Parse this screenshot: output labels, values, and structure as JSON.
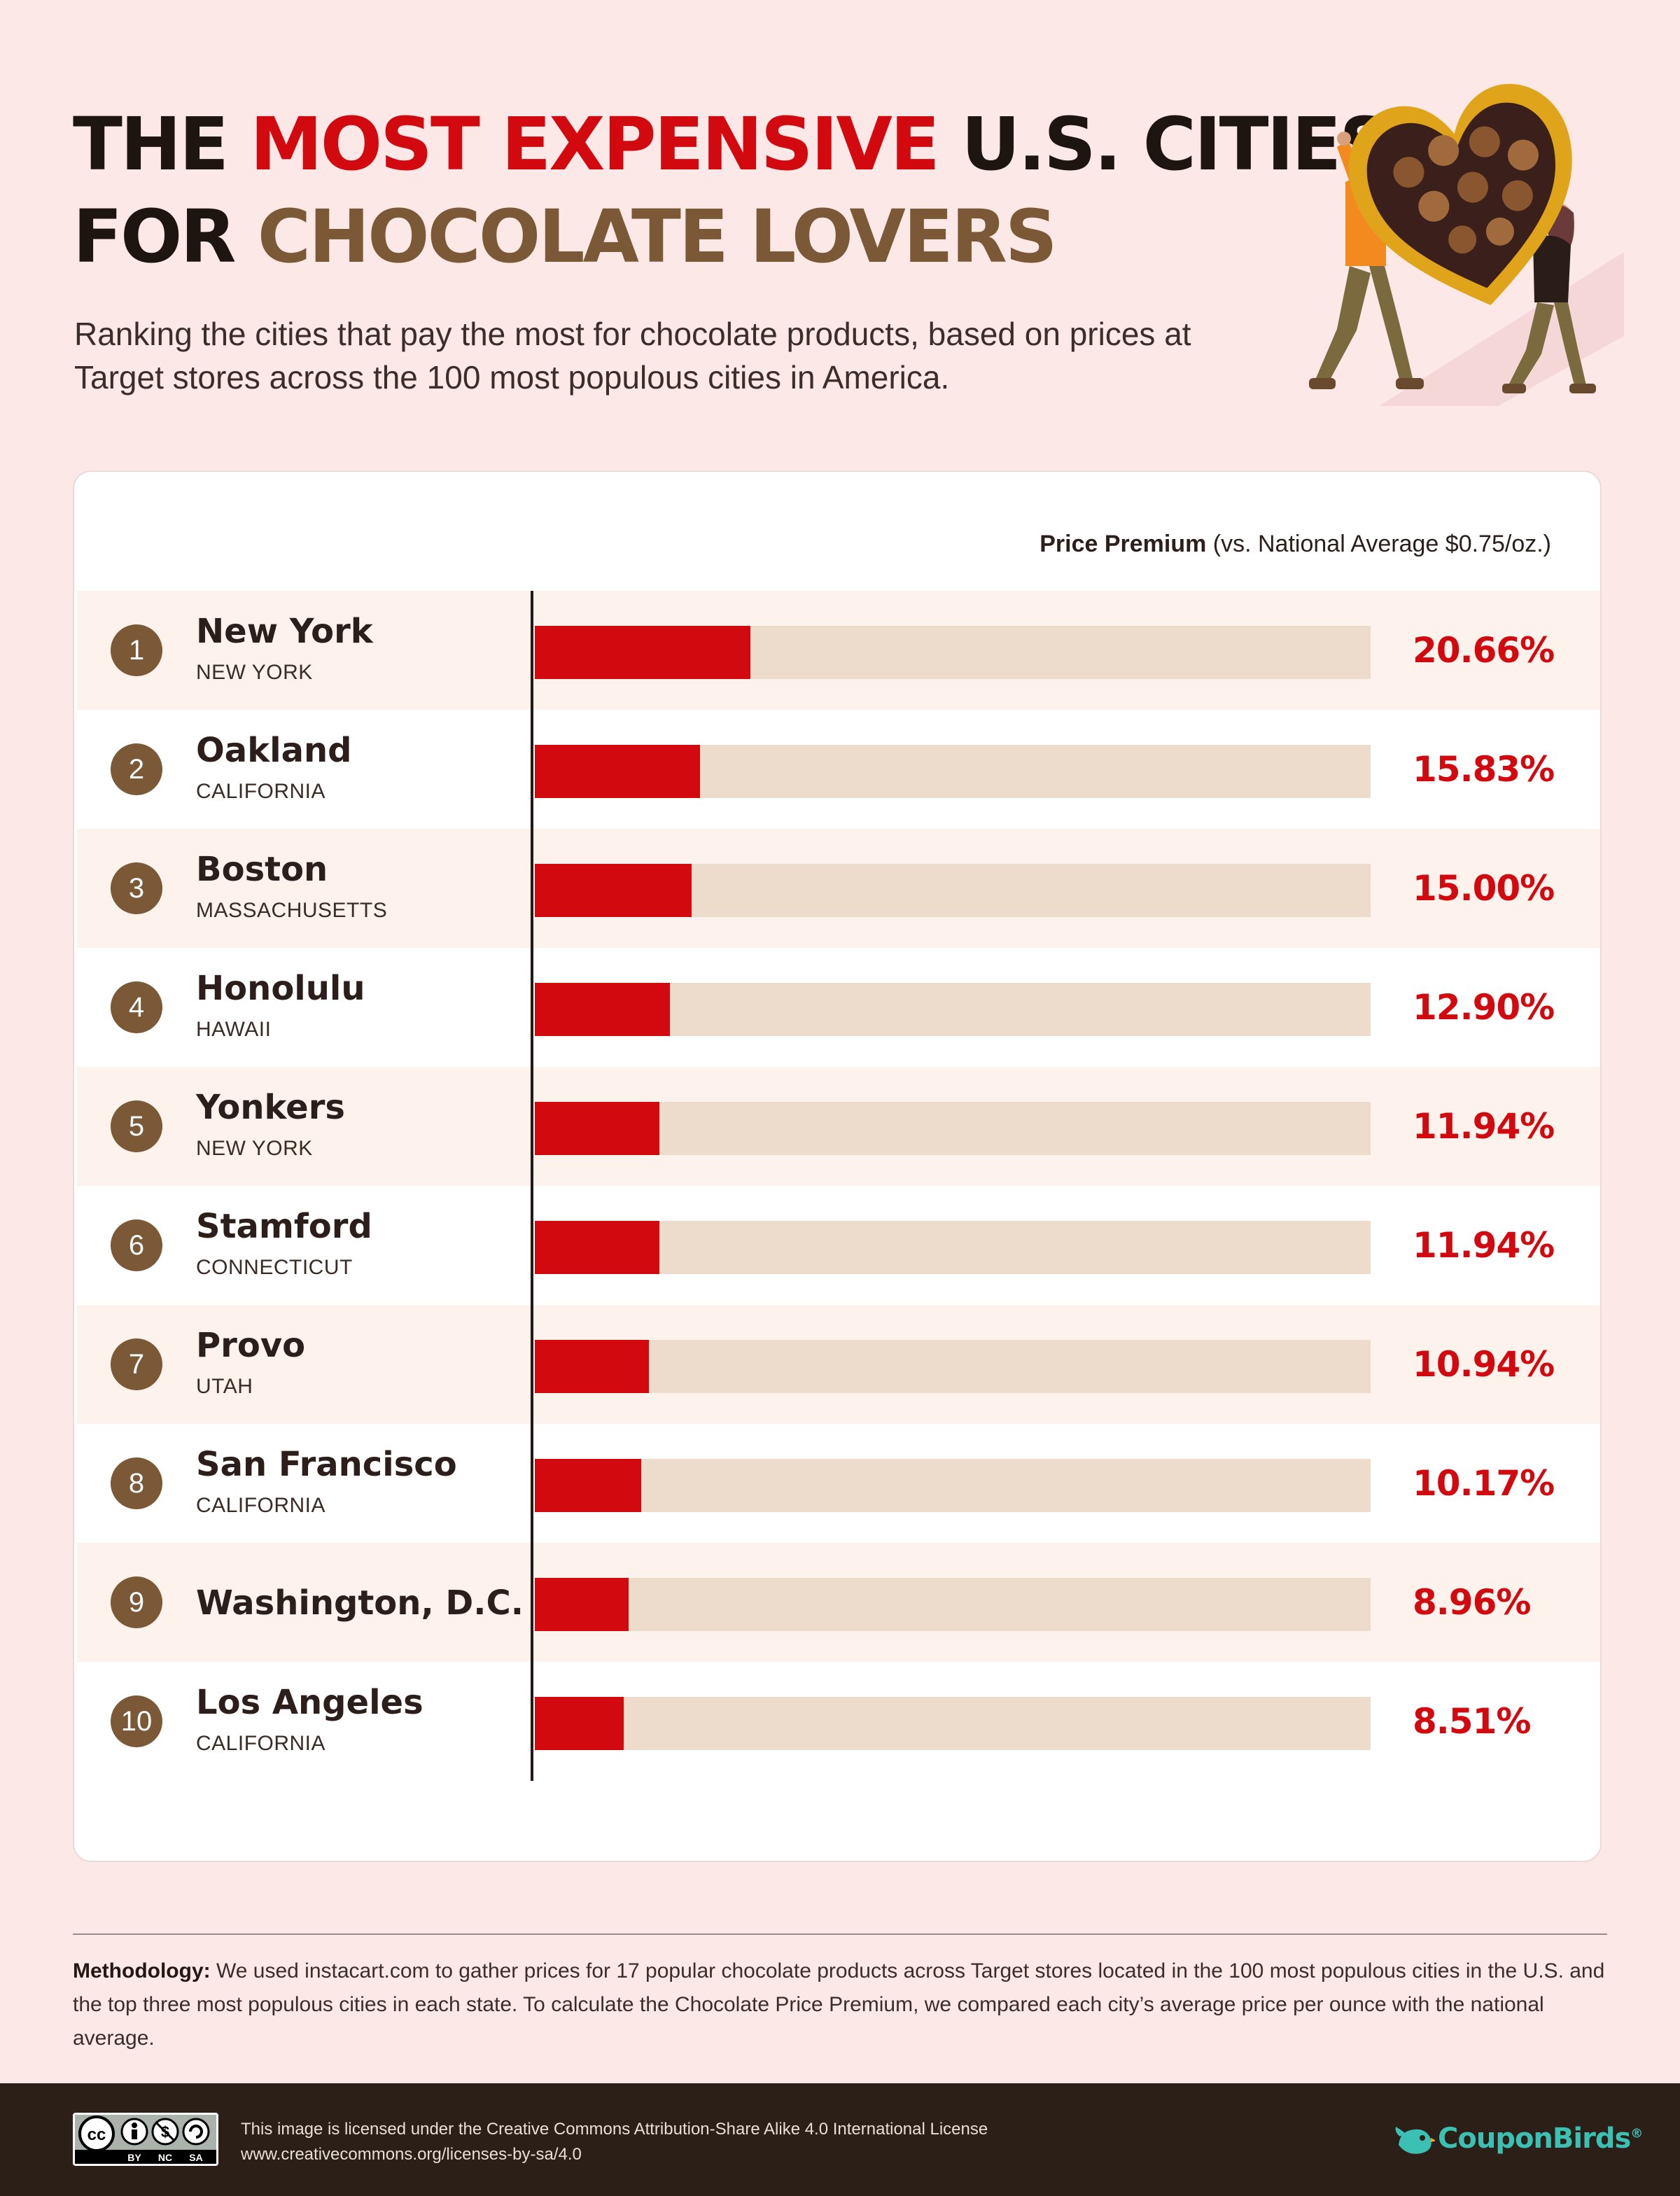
{
  "title": {
    "line1_a": "THE ",
    "line1_b": "MOST EXPENSIVE",
    "line1_c": " U.S. CITIES",
    "line2_a": "FOR ",
    "line2_b": "CHOCOLATE LOVERS"
  },
  "subtitle": "Ranking the cities that pay the most for chocolate products, based on prices at Target stores across the 100 most populous cities in America.",
  "chart_data": {
    "type": "bar",
    "orientation": "horizontal",
    "title": "THE MOST EXPENSIVE U.S. CITIES FOR CHOCOLATE LOVERS",
    "value_label_bold": "Price Premium",
    "value_label_rest": " (vs. National Average $0.75/oz.)",
    "xlim": [
      0,
      80
    ],
    "grid": false,
    "colors": {
      "bar": "#d20a10",
      "track": "#eddccb",
      "value_text": "#d20a10"
    },
    "rows": [
      {
        "rank": "1",
        "city": "New York",
        "state": "NEW YORK",
        "value": 20.66,
        "label": "20.66%"
      },
      {
        "rank": "2",
        "city": "Oakland",
        "state": "CALIFORNIA",
        "value": 15.83,
        "label": "15.83%"
      },
      {
        "rank": "3",
        "city": "Boston",
        "state": "MASSACHUSETTS",
        "value": 15.0,
        "label": "15.00%"
      },
      {
        "rank": "4",
        "city": "Honolulu",
        "state": "HAWAII",
        "value": 12.9,
        "label": "12.90%"
      },
      {
        "rank": "5",
        "city": "Yonkers",
        "state": "NEW YORK",
        "value": 11.94,
        "label": "11.94%"
      },
      {
        "rank": "6",
        "city": "Stamford",
        "state": "CONNECTICUT",
        "value": 11.94,
        "label": "11.94%"
      },
      {
        "rank": "7",
        "city": "Provo",
        "state": "UTAH",
        "value": 10.94,
        "label": "10.94%"
      },
      {
        "rank": "8",
        "city": "San Francisco",
        "state": "CALIFORNIA",
        "value": 10.17,
        "label": "10.17%"
      },
      {
        "rank": "9",
        "city": "Washington, D.C.",
        "state": "",
        "value": 8.96,
        "label": "8.96%"
      },
      {
        "rank": "10",
        "city": "Los Angeles",
        "state": "CALIFORNIA",
        "value": 8.51,
        "label": "8.51%"
      }
    ]
  },
  "methodology": {
    "label": "Methodology:",
    "text": " We used instacart.com to gather prices for 17 popular chocolate products across Target stores located in the 100 most populous cities in the U.S. and the top three most populous cities in each state. To calculate the Chocolate Price Premium, we compared each city’s average price per ounce with the national average."
  },
  "footer": {
    "license_line1": "This image is licensed under the Creative Commons Attribution-Share Alike 4.0 International License",
    "license_line2": "www.creativecommons.org/licenses-by-sa/4.0",
    "cc_icon": "creative-commons-by-nc-sa-badge",
    "cc_labels": [
      "BY",
      "NC",
      "SA"
    ],
    "brand_icon": "bird-icon",
    "brand": "CouponBirds",
    "brand_mark": "®"
  },
  "illustration": "couple-carrying-heart-chocolate-box"
}
